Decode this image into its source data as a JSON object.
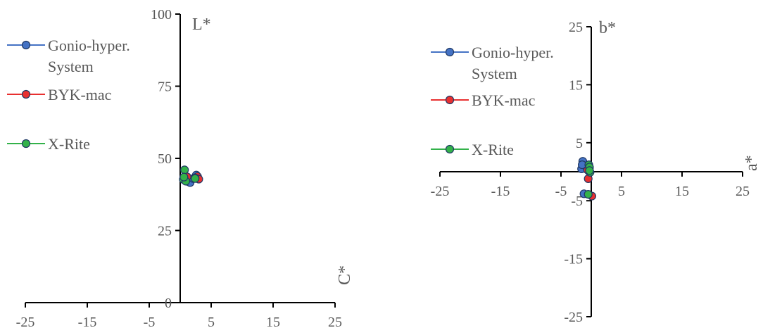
{
  "chart_data": [
    {
      "type": "scatter",
      "title": "",
      "xlabel": "C*",
      "ylabel": "L*",
      "xlim": [
        -25,
        25
      ],
      "ylim": [
        0,
        100
      ],
      "x_ticks": [
        "-25",
        "-15",
        "-5",
        "5",
        "15",
        "25"
      ],
      "y_ticks": [
        "0",
        "25",
        "50",
        "75",
        "100"
      ],
      "legend_position": "left",
      "series": [
        {
          "name": "Gonio-hyper. System",
          "color": "#4472C4",
          "points": [
            [
              0.6,
              43.2
            ],
            [
              1.2,
              42.0
            ],
            [
              2.6,
              44.2
            ],
            [
              1.6,
              41.6
            ],
            [
              2.1,
              43.0
            ]
          ]
        },
        {
          "name": "BYK-mac",
          "color": "#E83030",
          "points": [
            [
              2.8,
              43.7
            ],
            [
              3.0,
              42.8
            ],
            [
              1.1,
              43.6
            ],
            [
              2.4,
              43.2
            ]
          ]
        },
        {
          "name": "X-Rite",
          "color": "#33B24A",
          "points": [
            [
              0.7,
              46.0
            ],
            [
              0.5,
              42.7
            ],
            [
              2.4,
              43.0
            ],
            [
              0.9,
              42.1
            ],
            [
              0.6,
              43.5
            ]
          ]
        }
      ]
    },
    {
      "type": "scatter",
      "title": "",
      "xlabel": "a*",
      "ylabel": "b*",
      "xlim": [
        -25,
        25
      ],
      "ylim": [
        -25,
        25
      ],
      "x_ticks": [
        "-25",
        "-15",
        "-5",
        "5",
        "15",
        "25"
      ],
      "y_ticks": [
        "-25",
        "-15",
        "-5",
        "5",
        "15",
        "25"
      ],
      "legend_position": "left",
      "series": [
        {
          "name": "Gonio-hyper. System",
          "color": "#4472C4",
          "points": [
            [
              -1.4,
              1.8
            ],
            [
              -1.6,
              0.5
            ],
            [
              -1.2,
              -3.8
            ],
            [
              -0.9,
              1.0
            ],
            [
              -1.5,
              1.2
            ]
          ]
        },
        {
          "name": "BYK-mac",
          "color": "#E83030",
          "points": [
            [
              -0.3,
              0.7
            ],
            [
              -0.5,
              -1.2
            ],
            [
              0.1,
              -4.2
            ],
            [
              -0.6,
              0.3
            ]
          ]
        },
        {
          "name": "X-Rite",
          "color": "#33B24A",
          "points": [
            [
              -0.4,
              1.2
            ],
            [
              -0.3,
              0.8
            ],
            [
              -0.2,
              -0.1
            ],
            [
              -0.5,
              -3.9
            ],
            [
              -0.3,
              0.2
            ]
          ]
        }
      ]
    }
  ]
}
